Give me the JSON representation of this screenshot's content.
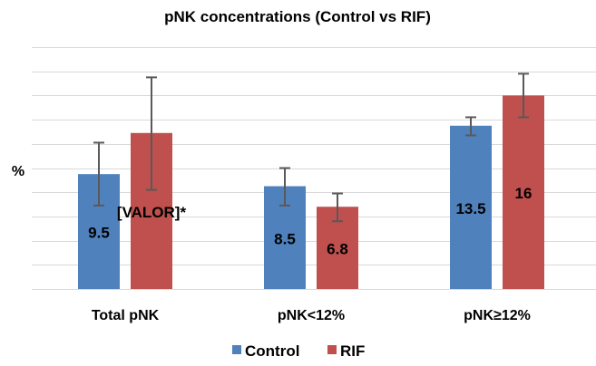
{
  "chart_data": {
    "type": "bar",
    "title": "pNK concentrations (Control vs RIF)",
    "xlabel": "",
    "ylabel": "%",
    "ylim": [
      0,
      20
    ],
    "y_grid_step": 2,
    "grid": true,
    "y_tick_labels_shown": false,
    "categories": [
      "Total pNK",
      "pNK<12%",
      "pNK≥12%"
    ],
    "series": [
      {
        "name": "Control",
        "color": "#4F81BD",
        "values": [
          9.5,
          8.5,
          13.5
        ],
        "labels": [
          "9.5",
          "8.5",
          "13.5"
        ],
        "error_low": [
          6.9,
          6.9,
          12.7
        ],
        "error_high": [
          12.1,
          10.0,
          14.2
        ]
      },
      {
        "name": "RIF",
        "color": "#C0504D",
        "values": [
          12.9,
          6.8,
          16
        ],
        "labels": [
          "[VALOR]*",
          "6.8",
          "16"
        ],
        "error_low": [
          8.2,
          5.6,
          14.2
        ],
        "error_high": [
          17.5,
          7.9,
          17.8
        ]
      }
    ],
    "legend": {
      "position": "bottom",
      "entries": [
        "Control",
        "RIF"
      ]
    }
  }
}
